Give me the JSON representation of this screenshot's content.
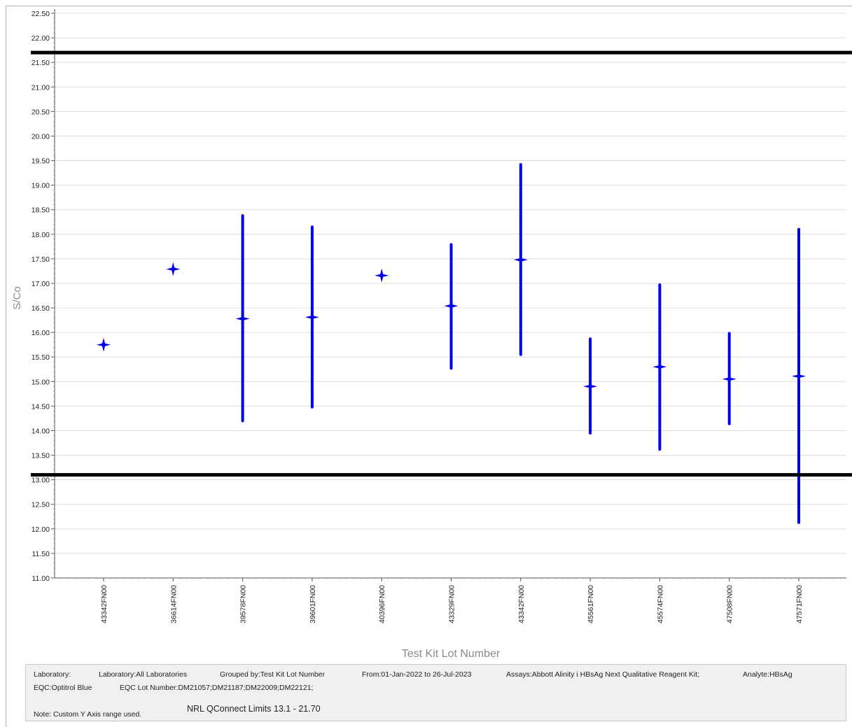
{
  "chart_data": {
    "type": "scatter",
    "ylabel": "S/Co",
    "xlabel": "Test Kit Lot Number",
    "ylim": [
      11.0,
      22.5
    ],
    "y_ticks": [
      "11.00",
      "11.50",
      "12.00",
      "12.50",
      "13.00",
      "13.50",
      "14.00",
      "14.50",
      "15.00",
      "15.50",
      "16.00",
      "16.50",
      "17.00",
      "17.50",
      "18.00",
      "18.50",
      "19.00",
      "19.50",
      "20.00",
      "20.50",
      "21.00",
      "21.50",
      "22.00",
      "22.50"
    ],
    "grid": true,
    "categories": [
      "43342FN00",
      "36614FN00",
      "39578FN00",
      "39601FN00",
      "40396FN00",
      "43329FN00",
      "43342FN00",
      "45561FN00",
      "45574FN00",
      "47508FN00",
      "47571FN00"
    ],
    "series": [
      {
        "mean": [
          15.75,
          17.29,
          16.28,
          16.31,
          17.16,
          16.54,
          17.48,
          14.9,
          15.3,
          15.05,
          15.11
        ],
        "low": [
          null,
          null,
          14.2,
          14.48,
          null,
          15.27,
          15.55,
          13.95,
          13.62,
          14.14,
          12.13
        ],
        "high": [
          null,
          null,
          18.38,
          18.15,
          null,
          17.79,
          19.42,
          15.87,
          16.97,
          15.98,
          18.1
        ]
      }
    ],
    "reference_lines": [
      21.7,
      13.1
    ],
    "colors": {
      "series": "#0000ee",
      "reference": "#000000",
      "grid": "#dcdcdc"
    }
  },
  "footer": {
    "laboratory_label": "Laboratory:",
    "laboratory_value": "Laboratory:All Laboratories",
    "grouped_by": "Grouped by:Test Kit Lot Number",
    "date_range": "From:01-Jan-2022 to 26-Jul-2023",
    "assays": "Assays:Abbott Alinity i HBsAg Next Qualitative Reagent Kit;",
    "analyte": "Analyte:HBsAg",
    "eqc": "EQC:Optitrol Blue",
    "eqc_lot": "EQC Lot Number:DM21057;DM21187;DM22009;DM22121;",
    "limits_note": "NRL QConnect Limits 13.1 - 21.70",
    "axis_note": "Note: Custom Y Axis range used."
  }
}
